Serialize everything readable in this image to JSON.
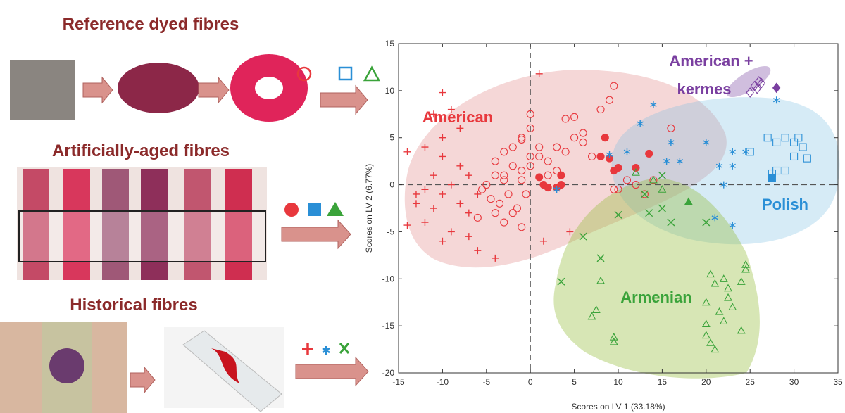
{
  "header": {
    "reference": "Reference dyed fibres",
    "aged": "Artificially-aged fibres",
    "historical": "Historical fibres"
  },
  "chart_data": {
    "type": "scatter",
    "xlabel": "Scores on LV 1 (33.18%)",
    "ylabel": "Scores on LV 2 (6.77%)",
    "xlim": [
      -15,
      35
    ],
    "ylim": [
      -20,
      15
    ],
    "xticks": [
      -15,
      -10,
      -5,
      0,
      5,
      10,
      15,
      20,
      25,
      30,
      35
    ],
    "yticks": [
      -20,
      -15,
      -10,
      -5,
      0,
      5,
      10,
      15
    ],
    "annotations": [
      "American",
      "American +",
      "kermes",
      "Polish",
      "Armenian"
    ],
    "series": [
      {
        "color": "#e8383d",
        "marker": "circle",
        "x": [
          -5,
          -4,
          -3,
          -2,
          -1,
          0,
          1,
          -4.5,
          -3.5,
          -2.5,
          -1.5,
          -0.5,
          -4,
          -3,
          -2,
          -1,
          0,
          -5.5,
          -2,
          -1,
          0,
          -3,
          -1,
          1,
          2,
          3,
          4,
          5,
          6,
          7,
          8,
          9,
          9.5,
          4,
          5,
          6,
          0,
          -1,
          -6,
          -4,
          -3,
          9.5,
          12,
          13,
          14,
          16,
          11,
          10,
          2,
          3
        ],
        "values": [
          0,
          1,
          0.5,
          2,
          1.5,
          3,
          4,
          -1.5,
          -2,
          -1,
          -2.5,
          -1,
          2.5,
          3.5,
          4,
          5,
          6,
          -0.5,
          -3,
          0.5,
          2,
          -4,
          -4.5,
          3,
          2.5,
          4,
          3.5,
          5,
          4.5,
          3,
          8,
          9,
          10.5,
          7,
          7.2,
          5.5,
          7.5,
          4.8,
          -3.5,
          -3,
          1,
          -0.5,
          0,
          -1,
          0.5,
          6,
          0.5,
          -0.5,
          1,
          1.5
        ]
      },
      {
        "color": "#e8383d",
        "marker": "circle-filled",
        "x": [
          8.5,
          9,
          9.5,
          10,
          8,
          12,
          13.5,
          3.5,
          3.5,
          1,
          1.5,
          2,
          3
        ],
        "values": [
          5,
          2.8,
          1.5,
          1.8,
          3,
          1.8,
          3.3,
          1,
          0,
          0.8,
          0,
          -0.3,
          -0.3
        ]
      },
      {
        "color": "#e8383d",
        "marker": "plus",
        "x": [
          -10,
          -11,
          -9,
          -8,
          -10,
          -12,
          -14,
          -10,
          -11,
          -12,
          -13,
          -10,
          -9,
          -7,
          -8,
          -11,
          -14,
          -12,
          -9,
          -10,
          -7,
          -4,
          -6,
          1.5,
          4.5,
          1,
          -8,
          -7,
          -13,
          -6
        ],
        "values": [
          9.8,
          7.5,
          8,
          6,
          5,
          4,
          3.5,
          3,
          1,
          -0.5,
          -1,
          -1,
          0,
          1,
          -2,
          -2.5,
          -4.3,
          -4,
          -5,
          -6,
          -5.5,
          -7.8,
          -7,
          -6,
          -5,
          11.8,
          2,
          -3,
          -2,
          -1
        ]
      },
      {
        "color": "#2a8fd6",
        "marker": "square",
        "x": [
          25,
          27,
          28,
          29,
          30,
          30.5,
          31,
          31.5,
          30,
          28,
          27.5,
          29
        ],
        "values": [
          3.5,
          5,
          4.5,
          5,
          4.5,
          5,
          4,
          2.8,
          3,
          1.5,
          1.2,
          1.5
        ]
      },
      {
        "color": "#2a8fd6",
        "marker": "square-filled",
        "x": [
          27.5
        ],
        "values": [
          0.7
        ]
      },
      {
        "color": "#2a8fd6",
        "marker": "asterisk",
        "x": [
          9,
          11,
          12.5,
          14,
          16,
          17,
          20,
          21.5,
          23,
          23,
          23,
          22,
          21,
          24.5,
          28,
          3,
          15.5
        ],
        "values": [
          3.2,
          3.5,
          6.5,
          8.5,
          4.5,
          2.5,
          4.5,
          2,
          2,
          3.5,
          -4.3,
          0,
          -3.5,
          3.5,
          9,
          -0.5,
          2.5
        ]
      },
      {
        "color": "#3aa33a",
        "marker": "triangle",
        "x": [
          15,
          14,
          12,
          20.5,
          21,
          22,
          22.5,
          22.5,
          23,
          21.5,
          22,
          20,
          20,
          21,
          24,
          24.5,
          24.5,
          24,
          8,
          7,
          7.5,
          9.5,
          9.5,
          20,
          20.5
        ],
        "values": [
          -0.5,
          0.5,
          1.3,
          -9.5,
          -10.5,
          -10,
          -11,
          -12,
          -13,
          -13.5,
          -14.5,
          -12.5,
          -16,
          -17.5,
          -15.5,
          -9,
          -8.5,
          -10.3,
          -10.2,
          -14,
          -13.3,
          -16.2,
          -16.7,
          -14.8,
          -16.8
        ]
      },
      {
        "color": "#3aa33a",
        "marker": "triangle-filled",
        "x": [
          18
        ],
        "values": [
          -1.8
        ]
      },
      {
        "color": "#3aa33a",
        "marker": "x",
        "x": [
          3.5,
          6,
          8,
          10,
          13.5,
          13,
          15,
          16,
          20,
          15
        ],
        "values": [
          -10.3,
          -5.5,
          -7.8,
          -3.2,
          -3,
          -1,
          -2.5,
          -4,
          -4,
          1
        ]
      },
      {
        "color": "#7a3fa0",
        "marker": "diamond",
        "x": [
          25,
          25.5,
          26.3,
          26,
          25.8
        ],
        "values": [
          9.8,
          10.5,
          10.8,
          11,
          10.2
        ]
      },
      {
        "color": "#7a3fa0",
        "marker": "diamond-filled",
        "x": [
          28
        ],
        "values": [
          10.3
        ]
      }
    ]
  }
}
